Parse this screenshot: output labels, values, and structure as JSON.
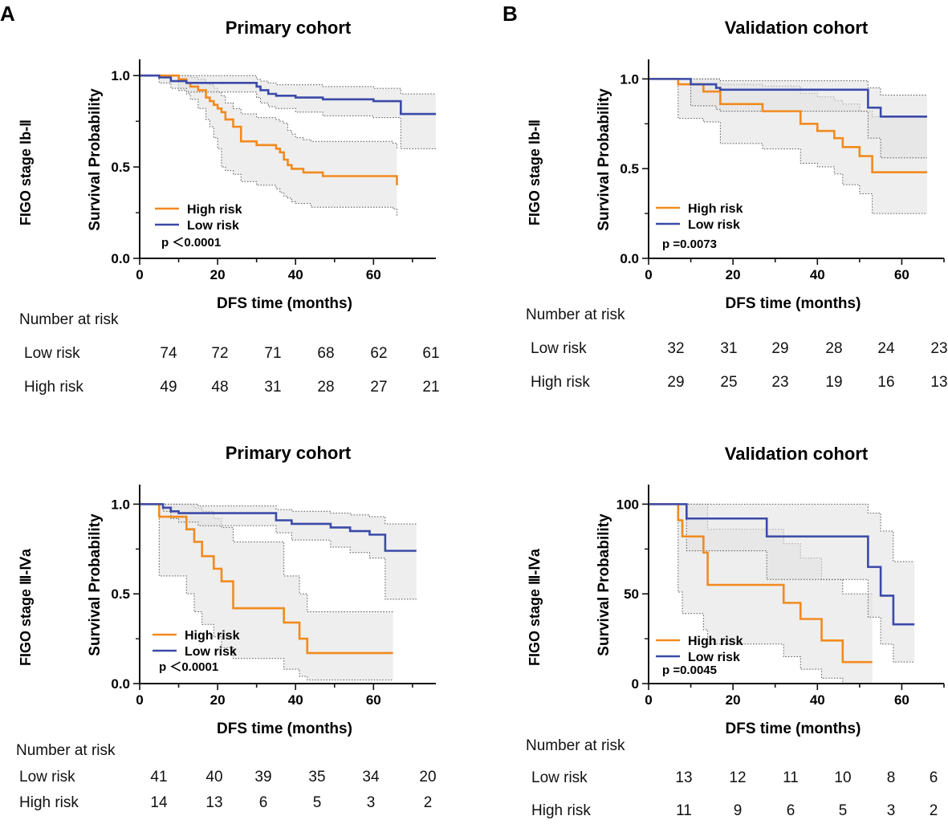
{
  "panel_labels": [
    "A",
    "B"
  ],
  "colors": {
    "high_risk": "#F28A1E",
    "low_risk": "#3A4AA8",
    "ci_fill": "#e2e2e2",
    "ci_line": "#555555"
  },
  "number_at_risk_label": "Number at risk",
  "chart_data": [
    {
      "id": "p1",
      "type": "line",
      "title": "Primary cohort",
      "stage_label": "FIGO stage  Ⅰb-Ⅱ",
      "xlabel": "DFS time (months)",
      "ylabel": "Survival Probability",
      "xlim": [
        0,
        76
      ],
      "ylim": [
        0,
        1.08
      ],
      "xticks": [
        0,
        20,
        40,
        60
      ],
      "yticks": [
        0,
        0.5,
        1.0
      ],
      "ytick_labels": [
        "0.0",
        "0.5",
        "1.0"
      ],
      "legend": [
        "High risk",
        "Low risk"
      ],
      "p_value": "p ＜0.0001",
      "series": [
        {
          "name": "High risk",
          "x": [
            0,
            10,
            12,
            13,
            15,
            17,
            18,
            19,
            20,
            21,
            22,
            24,
            26,
            30,
            35,
            36,
            37,
            38,
            39,
            40,
            42,
            44,
            47,
            65,
            66
          ],
          "y": [
            1.0,
            0.98,
            0.96,
            0.94,
            0.92,
            0.88,
            0.86,
            0.84,
            0.82,
            0.8,
            0.76,
            0.72,
            0.64,
            0.62,
            0.6,
            0.58,
            0.54,
            0.51,
            0.49,
            0.49,
            0.47,
            0.47,
            0.45,
            0.45,
            0.4
          ],
          "ci_lower": [
            1.0,
            0.92,
            0.9,
            0.87,
            0.82,
            0.76,
            0.72,
            0.66,
            0.6,
            0.5,
            0.48,
            0.46,
            0.42,
            0.4,
            0.38,
            0.36,
            0.34,
            0.33,
            0.31,
            0.3,
            0.3,
            0.28,
            0.28,
            0.27,
            0.23
          ],
          "ci_upper": [
            1.0,
            1.0,
            1.0,
            0.99,
            0.98,
            0.96,
            0.95,
            0.93,
            0.91,
            0.89,
            0.85,
            0.82,
            0.79,
            0.77,
            0.76,
            0.75,
            0.74,
            0.7,
            0.68,
            0.66,
            0.65,
            0.64,
            0.64,
            0.63,
            0.6
          ]
        },
        {
          "name": "Low risk",
          "x": [
            0,
            5,
            8,
            12,
            30,
            31,
            33,
            35,
            40,
            47,
            52,
            60,
            67,
            76
          ],
          "y": [
            1.0,
            0.99,
            0.97,
            0.96,
            0.94,
            0.92,
            0.9,
            0.89,
            0.88,
            0.87,
            0.87,
            0.86,
            0.79,
            0.79
          ],
          "ci_lower": [
            1.0,
            0.96,
            0.93,
            0.91,
            0.88,
            0.85,
            0.83,
            0.82,
            0.8,
            0.78,
            0.78,
            0.77,
            0.6,
            0.6
          ],
          "ci_upper": [
            1.0,
            1.0,
            1.0,
            1.0,
            0.98,
            0.97,
            0.96,
            0.95,
            0.95,
            0.94,
            0.94,
            0.93,
            0.9,
            0.9
          ]
        }
      ],
      "risk_table": {
        "rows": [
          {
            "label": "Low risk",
            "values": [
              "74",
              "72",
              "71",
              "68",
              "62",
              "61"
            ]
          },
          {
            "label": "High risk",
            "values": [
              "49",
              "48",
              "31",
              "28",
              "27",
              "21"
            ]
          }
        ]
      }
    },
    {
      "id": "v1",
      "type": "line",
      "title": "Validation cohort",
      "stage_label": "FIGO stage  Ⅰb-Ⅱ",
      "xlabel": "DFS time (months)",
      "ylabel": "Survival Probability",
      "xlim": [
        0,
        70
      ],
      "ylim": [
        0,
        1.1
      ],
      "xticks": [
        0,
        20,
        40,
        60
      ],
      "yticks": [
        0,
        0.5,
        1.0
      ],
      "ytick_labels": [
        "0.0",
        "0.5",
        "1.0"
      ],
      "legend": [
        "High risk",
        "Low risk"
      ],
      "p_value": "p =0.0073",
      "series": [
        {
          "name": "High risk",
          "x": [
            0,
            7,
            13,
            17,
            27,
            36,
            40,
            44,
            46,
            50,
            53,
            66
          ],
          "y": [
            1.0,
            0.97,
            0.93,
            0.86,
            0.82,
            0.75,
            0.71,
            0.67,
            0.62,
            0.57,
            0.48,
            0.48
          ],
          "ci_lower": [
            1.0,
            0.78,
            0.76,
            0.64,
            0.61,
            0.53,
            0.51,
            0.47,
            0.41,
            0.36,
            0.25,
            0.25
          ],
          "ci_upper": [
            1.0,
            1.0,
            1.0,
            0.97,
            0.96,
            0.92,
            0.9,
            0.88,
            0.86,
            0.82,
            0.79,
            0.79
          ]
        },
        {
          "name": "Low risk",
          "x": [
            0,
            10,
            16,
            17,
            51,
            52,
            55,
            66
          ],
          "y": [
            1.0,
            0.97,
            0.95,
            0.94,
            0.94,
            0.84,
            0.79,
            0.79
          ],
          "ci_lower": [
            1.0,
            0.85,
            0.83,
            0.82,
            0.82,
            0.67,
            0.56,
            0.56
          ],
          "ci_upper": [
            1.0,
            1.0,
            1.0,
            0.99,
            0.99,
            0.95,
            0.91,
            0.91
          ]
        }
      ],
      "risk_table": {
        "rows": [
          {
            "label": "Low risk",
            "values": [
              "32",
              "31",
              "29",
              "28",
              "24",
              "23"
            ]
          },
          {
            "label": "High risk",
            "values": [
              "29",
              "25",
              "23",
              "19",
              "16",
              "13"
            ]
          }
        ]
      }
    },
    {
      "id": "p2",
      "type": "line",
      "title": "Primary cohort",
      "stage_label": "FIGO stage  Ⅲ-Ⅳa",
      "xlabel": "DFS time (months)",
      "ylabel": "Survival Probability",
      "xlim": [
        0,
        76
      ],
      "ylim": [
        0,
        1.1
      ],
      "xticks": [
        0,
        20,
        40,
        60
      ],
      "yticks": [
        0,
        0.5,
        1.0
      ],
      "ytick_labels": [
        "0.0",
        "0.5",
        "1.0"
      ],
      "legend": [
        "High risk",
        "Low risk"
      ],
      "p_value": "p ＜0.0001",
      "series": [
        {
          "name": "High risk",
          "x": [
            0,
            5,
            12,
            14,
            16,
            19,
            21,
            24,
            37,
            41,
            43,
            65
          ],
          "y": [
            1.0,
            0.93,
            0.86,
            0.79,
            0.71,
            0.64,
            0.57,
            0.42,
            0.34,
            0.25,
            0.17,
            0.17
          ],
          "ci_lower": [
            1.0,
            0.6,
            0.5,
            0.4,
            0.33,
            0.26,
            0.2,
            0.14,
            0.08,
            0.04,
            0.02,
            0.02
          ],
          "ci_upper": [
            1.0,
            1.0,
            1.0,
            0.98,
            0.96,
            0.92,
            0.87,
            0.79,
            0.6,
            0.5,
            0.4,
            0.4
          ]
        },
        {
          "name": "Low risk",
          "x": [
            0,
            6,
            8,
            10,
            15,
            35,
            39,
            49,
            54,
            59,
            63,
            71
          ],
          "y": [
            1.0,
            0.98,
            0.96,
            0.95,
            0.95,
            0.91,
            0.89,
            0.87,
            0.85,
            0.83,
            0.74,
            0.74
          ],
          "ci_lower": [
            1.0,
            0.96,
            0.92,
            0.9,
            0.88,
            0.84,
            0.8,
            0.76,
            0.73,
            0.7,
            0.47,
            0.47
          ],
          "ci_upper": [
            1.0,
            1.0,
            1.0,
            1.0,
            0.99,
            0.97,
            0.96,
            0.95,
            0.94,
            0.93,
            0.89,
            0.89
          ]
        }
      ],
      "risk_table": {
        "rows": [
          {
            "label": "Low risk",
            "values": [
              "41",
              "40",
              "39",
              "35",
              "34",
              "20"
            ]
          },
          {
            "label": "High risk",
            "values": [
              "14",
              "13",
              "6",
              "5",
              "3",
              "2"
            ]
          }
        ]
      }
    },
    {
      "id": "v2",
      "type": "line",
      "title": "Validation cohort",
      "stage_label": "FIGO stage  Ⅲ-Ⅳa",
      "xlabel": "DFS time (months)",
      "ylabel": "Survival Probability",
      "xlim": [
        0,
        70
      ],
      "ylim": [
        0,
        110
      ],
      "xticks": [
        0,
        20,
        40,
        60
      ],
      "yticks": [
        0,
        50,
        100
      ],
      "ytick_labels": [
        "0",
        "50",
        "100"
      ],
      "legend": [
        "High risk",
        "Low risk"
      ],
      "p_value": "p =0.0045",
      "series": [
        {
          "name": "High risk",
          "x": [
            0,
            7,
            8,
            13,
            14,
            32,
            36,
            41,
            46,
            53
          ],
          "y": [
            100,
            91,
            82,
            73,
            55,
            45,
            36,
            24,
            12,
            12
          ],
          "ci_lower": [
            100,
            51,
            39,
            30,
            22,
            15,
            8,
            3,
            0,
            0
          ],
          "ci_upper": [
            100,
            100,
            100,
            100,
            86,
            78,
            70,
            58,
            50,
            50
          ]
        },
        {
          "name": "Low risk",
          "x": [
            0,
            9,
            10,
            28,
            52,
            55,
            58,
            63
          ],
          "y": [
            100,
            92,
            92,
            82,
            65,
            49,
            33,
            33
          ],
          "ci_lower": [
            100,
            74,
            74,
            58,
            37,
            22,
            12,
            12
          ],
          "ci_upper": [
            100,
            100,
            100,
            100,
            95,
            85,
            68,
            68
          ]
        }
      ],
      "risk_table": {
        "rows": [
          {
            "label": "Low risk",
            "values": [
              "13",
              "12",
              "11",
              "10",
              "8",
              "6"
            ]
          },
          {
            "label": "High risk",
            "values": [
              "11",
              "9",
              "6",
              "5",
              "3",
              "2"
            ]
          }
        ]
      }
    }
  ]
}
